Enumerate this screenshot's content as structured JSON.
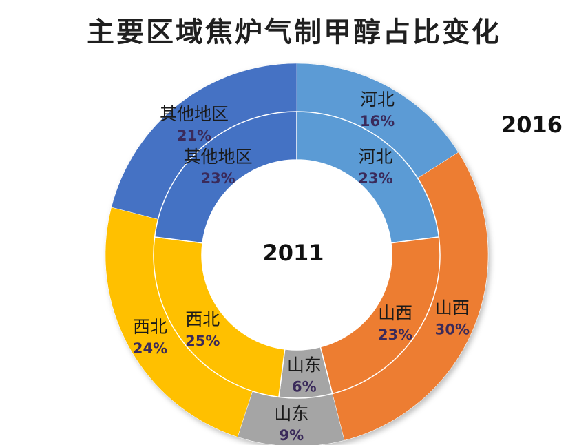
{
  "chart_data": {
    "type": "pie",
    "subtype": "doughnut",
    "title": "主要区域焦炉气制甲醇占比变化",
    "categories": [
      "河北",
      "山西",
      "山东",
      "西北",
      "其他地区"
    ],
    "series": [
      {
        "name": "2016",
        "ring": "outer",
        "values": [
          16,
          30,
          9,
          24,
          21
        ],
        "labels": [
          "16%",
          "30%",
          "9%",
          "24%",
          "21%"
        ]
      },
      {
        "name": "2011",
        "ring": "inner",
        "values": [
          23,
          23,
          6,
          25,
          23
        ],
        "labels": [
          "23%",
          "23%",
          "6%",
          "25%",
          "23%"
        ]
      }
    ],
    "colors": {
      "河北": "#5b9bd5",
      "山西": "#ed7d31",
      "山东": "#a5a5a5",
      "西北": "#ffc000",
      "其他地区": "#4472c4"
    },
    "label_colors": {
      "河北": "#ffffff",
      "山西": "#ffffff",
      "山东": "#ffffff",
      "西北": "#ffffff",
      "其他地区": "#ffffff"
    },
    "legend": "none"
  }
}
